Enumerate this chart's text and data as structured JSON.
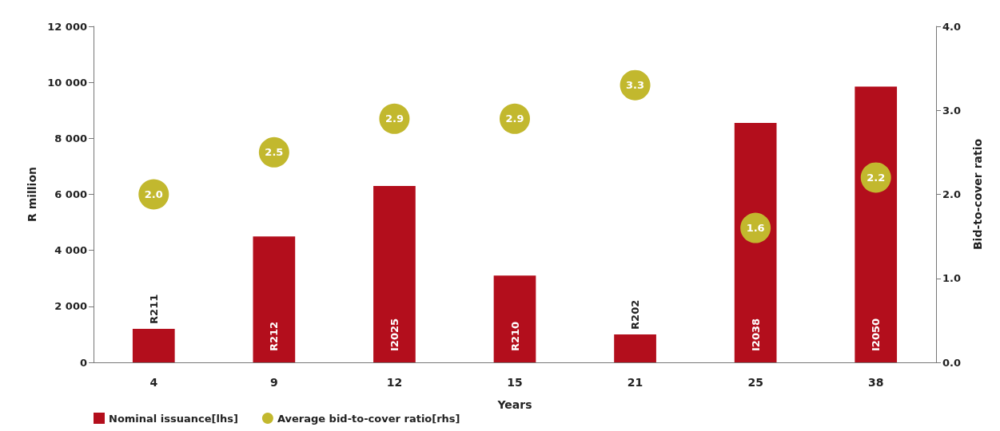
{
  "chart_data": {
    "type": "bar",
    "xlabel": "Years",
    "ylabel": "R million",
    "y2label": "Bid-to-cover ratio",
    "categories": [
      "4",
      "9",
      "12",
      "15",
      "21",
      "25",
      "38"
    ],
    "series": [
      {
        "name": "Nominal issuance[lhs]",
        "color": "#b30e1c",
        "values": [
          1200,
          4500,
          6300,
          3100,
          1000,
          8550,
          9850
        ],
        "value_labels": [
          "R211",
          "R212",
          "I2025",
          "R210",
          "R202",
          "I2038",
          "I2050"
        ]
      },
      {
        "name": "Average bid-to-cover ratio[rhs]",
        "type": "scatter",
        "axis": "y2",
        "color": "#c2b82e",
        "values": [
          2.0,
          2.5,
          2.9,
          2.9,
          3.3,
          1.6,
          2.2
        ],
        "value_labels": [
          "2.0",
          "2.5",
          "2.9",
          "2.9",
          "3.3",
          "1.6",
          "2.2"
        ]
      }
    ],
    "ylim": [
      0,
      12000
    ],
    "yticks": [
      {
        "value": 0,
        "label": "0"
      },
      {
        "value": 2000,
        "label": "2 000"
      },
      {
        "value": 4000,
        "label": "4 000"
      },
      {
        "value": 6000,
        "label": "6 000"
      },
      {
        "value": 8000,
        "label": "8 000"
      },
      {
        "value": 10000,
        "label": "10 000"
      },
      {
        "value": 12000,
        "label": "12 000"
      }
    ],
    "y2lim": [
      0,
      4
    ],
    "y2ticks": [
      {
        "value": 0,
        "label": "0.0"
      },
      {
        "value": 1,
        "label": "1.0"
      },
      {
        "value": 2,
        "label": "2.0"
      },
      {
        "value": 3,
        "label": "3.0"
      },
      {
        "value": 4,
        "label": "4.0"
      }
    ],
    "grid": false,
    "legend": "bottom left",
    "marker": "circle"
  }
}
